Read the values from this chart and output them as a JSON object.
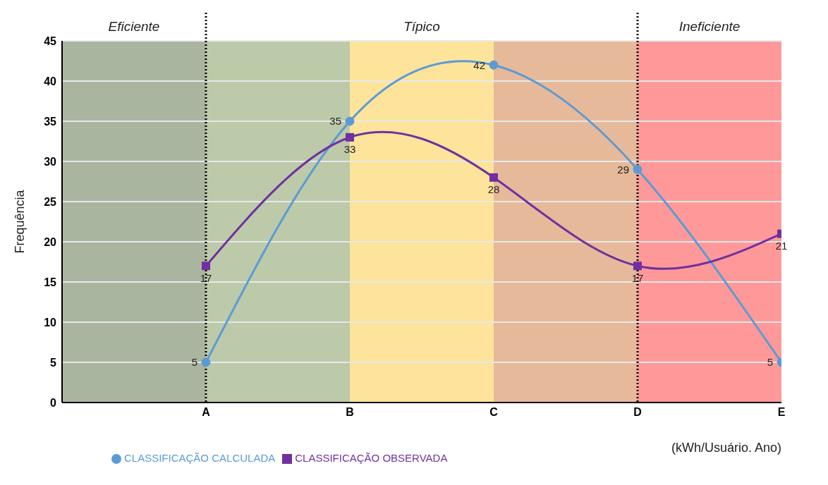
{
  "chart_data": {
    "type": "line",
    "categories": [
      null,
      "A",
      "B",
      "C",
      "D",
      "E"
    ],
    "ylabel": "Frequência",
    "xlabel": "(kWh/Usuário. Ano)",
    "ylim": [
      0,
      45
    ],
    "yticks": [
      0,
      5,
      10,
      15,
      20,
      25,
      30,
      35,
      40,
      45
    ],
    "grid": "y",
    "legend": "bottom",
    "data_labels": true,
    "line_style": "solid",
    "series": [
      {
        "name": "CLASSIFICAÇÃO CALCULADA",
        "color": "#5b9bd5",
        "marker": "circle",
        "values": [
          null,
          5,
          35,
          42,
          29,
          5
        ]
      },
      {
        "name": "CLASSIFICAÇÃO OBSERVADA",
        "color": "#7030a0",
        "marker": "square",
        "values": [
          null,
          17,
          33,
          28,
          17,
          21
        ]
      }
    ],
    "bands": [
      {
        "axis": "x",
        "from": "A",
        "to": "B",
        "color": "#bccaa9"
      },
      {
        "axis": "x",
        "from": "B",
        "to": "C",
        "color": "#fde49a"
      },
      {
        "axis": "x",
        "from": "C",
        "to": "D",
        "color": "#e6b99a"
      },
      {
        "axis": "x",
        "from": "D",
        "to": "E",
        "color": "#ff9999"
      }
    ],
    "ref_lines": [
      {
        "axis": "x",
        "value": "A",
        "line_style": "dotted",
        "color": "#000000"
      },
      {
        "axis": "x",
        "value": "D",
        "line_style": "dotted",
        "color": "#000000"
      }
    ],
    "annotations": [
      "Eficiente",
      "Típico",
      "Ineficiente"
    ]
  }
}
